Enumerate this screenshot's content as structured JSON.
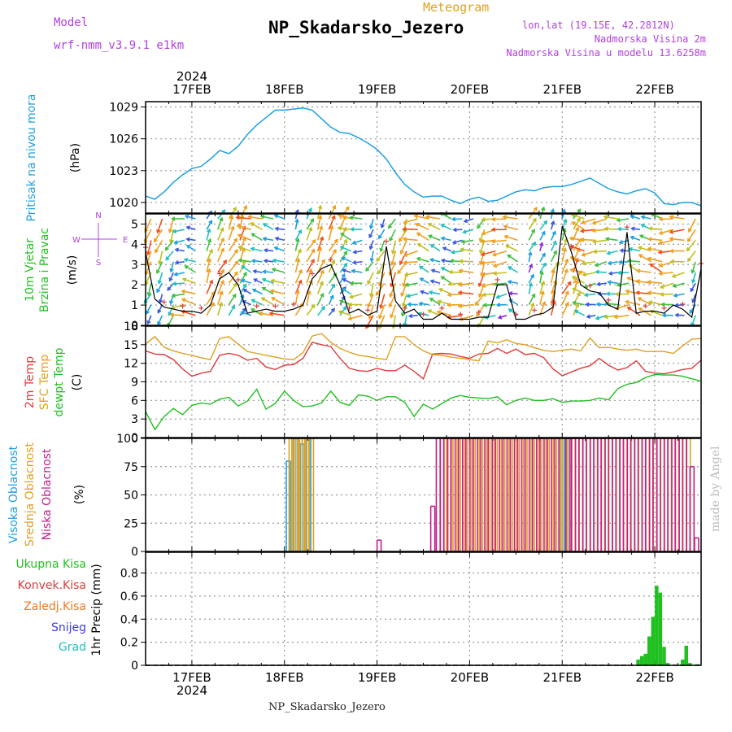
{
  "header": {
    "model_label": "Model",
    "model_name": "wrf-nmm_v3.9.1  e1km",
    "product": "Meteogram",
    "station": "NP_Skadarsko_Jezero",
    "lonlat": "lon,lat (19.15E, 42.2812N)",
    "altitude": "Nadmorska Visina 2m",
    "model_altitude": "Nadmorska Visina u modelu 13.6258m"
  },
  "footer": {
    "station": "NP_Skadarsko_Jezero",
    "credit": "made by Angel"
  },
  "colors": {
    "pressure": "#1ea0e0",
    "wind_speed": "#000000",
    "temp2m": "#e03a3a",
    "sfc_temp": "#e0a020",
    "dewpoint": "#20c020",
    "cloud_high": "#1ea0e0",
    "cloud_mid": "#e0a020",
    "cloud_low": "#c0208a",
    "precip_total": "#20c020",
    "label_green": "#20c020",
    "label_red": "#e03a3a",
    "label_orange": "#f07820",
    "label_snow": "#3a3ae0",
    "label_hail": "#20c0c0",
    "header_purple": "#b040e0"
  },
  "chart_data": [
    {
      "type": "line",
      "panel": "pressure",
      "title": "Pritisak na nivou mora",
      "ylabel": "(hPa)",
      "x_ticks": [
        "17FEB",
        "18FEB",
        "19FEB",
        "20FEB",
        "21FEB",
        "22FEB"
      ],
      "x_top_year": "2024",
      "xlim_days": [
        16.5,
        22.5
      ],
      "ylim": [
        1019.0,
        1029.5
      ],
      "y_ticks": [
        1020,
        1023,
        1026,
        1029
      ],
      "series": [
        {
          "x": [
            16.5,
            16.6,
            16.7,
            16.8,
            16.9,
            17.0,
            17.1,
            17.2,
            17.3,
            17.4,
            17.5,
            17.6,
            17.7,
            17.8,
            17.9,
            18.0,
            18.1,
            18.2,
            18.3,
            18.4,
            18.5,
            18.6,
            18.7,
            18.8,
            18.9,
            19.0,
            19.1,
            19.2,
            19.3,
            19.4,
            19.5,
            19.6,
            19.7,
            19.8,
            19.9,
            20.0,
            20.1,
            20.2,
            20.3,
            20.4,
            20.5,
            20.6,
            20.7,
            20.8,
            20.9,
            21.0,
            21.1,
            21.2,
            21.3,
            21.4,
            21.5,
            21.6,
            21.7,
            21.8,
            21.9,
            22.0,
            22.1,
            22.2,
            22.3,
            22.4,
            22.5
          ],
          "values": [
            1020.6,
            1020.3,
            1021.0,
            1021.9,
            1022.6,
            1023.2,
            1023.4,
            1024.1,
            1024.9,
            1024.6,
            1025.3,
            1026.4,
            1027.3,
            1028.0,
            1028.7,
            1028.7,
            1028.8,
            1028.9,
            1028.7,
            1027.9,
            1027.1,
            1026.6,
            1026.5,
            1026.1,
            1025.6,
            1025.0,
            1024.1,
            1022.8,
            1021.7,
            1021.0,
            1020.5,
            1020.6,
            1020.6,
            1020.2,
            1019.9,
            1020.3,
            1020.5,
            1020.1,
            1020.2,
            1020.6,
            1021.0,
            1021.2,
            1021.1,
            1021.4,
            1021.5,
            1021.5,
            1021.7,
            1022.0,
            1022.3,
            1021.8,
            1021.3,
            1021.0,
            1020.8,
            1021.1,
            1021.3,
            1020.9,
            1019.9,
            1019.8,
            1020.0,
            1020.0,
            1019.7
          ]
        }
      ]
    },
    {
      "type": "line",
      "panel": "wind",
      "title": "10m Vjetar Brzina i Pravac",
      "ylabel": "(m/s)",
      "compass": {
        "n": "N",
        "s": "S",
        "e": "E",
        "w": "W"
      },
      "ylim": [
        0,
        5.5
      ],
      "y_ticks": [
        0,
        1,
        2,
        3,
        4,
        5
      ],
      "series": [
        {
          "name": "speed",
          "x": [
            16.5,
            16.6,
            16.7,
            16.8,
            16.9,
            17.0,
            17.1,
            17.2,
            17.3,
            17.4,
            17.5,
            17.6,
            17.7,
            17.8,
            17.9,
            18.0,
            18.1,
            18.2,
            18.3,
            18.4,
            18.5,
            18.6,
            18.7,
            18.8,
            18.9,
            19.0,
            19.1,
            19.2,
            19.3,
            19.4,
            19.5,
            19.6,
            19.7,
            19.8,
            19.9,
            20.0,
            20.1,
            20.2,
            20.3,
            20.4,
            20.5,
            20.6,
            20.7,
            20.8,
            20.9,
            21.0,
            21.1,
            21.2,
            21.3,
            21.4,
            21.5,
            21.6,
            21.7,
            21.8,
            21.9,
            22.0,
            22.1,
            22.2,
            22.3,
            22.4,
            22.5
          ],
          "values": [
            3.6,
            1.3,
            0.9,
            0.8,
            0.7,
            0.7,
            0.6,
            1.0,
            2.3,
            2.6,
            2.0,
            0.6,
            0.7,
            0.8,
            0.7,
            0.7,
            0.8,
            1.0,
            2.3,
            2.8,
            3.0,
            2.0,
            0.6,
            0.8,
            0.5,
            0.7,
            3.9,
            1.2,
            0.6,
            0.8,
            0.3,
            0.3,
            0.6,
            0.3,
            0.3,
            0.3,
            0.4,
            0.4,
            2.0,
            2.0,
            0.3,
            0.3,
            0.5,
            0.6,
            0.9,
            4.9,
            3.6,
            2.0,
            1.7,
            1.6,
            1.0,
            0.8,
            4.6,
            0.6,
            0.7,
            0.7,
            0.6,
            1.0,
            0.8,
            0.4,
            2.8
          ]
        }
      ]
    },
    {
      "type": "line",
      "panel": "temperature",
      "series_labels": [
        "2m Temp",
        "SFC Temp",
        "dewpt Temp"
      ],
      "ylabel": "(C)",
      "ylim": [
        0,
        18
      ],
      "y_ticks": [
        0,
        3,
        6,
        9,
        12,
        15,
        18
      ],
      "series": [
        {
          "name": "2m Temp",
          "x": [
            16.5,
            16.6,
            16.7,
            16.8,
            16.9,
            17.0,
            17.1,
            17.2,
            17.3,
            17.4,
            17.5,
            17.6,
            17.7,
            17.8,
            17.9,
            18.0,
            18.1,
            18.2,
            18.3,
            18.4,
            18.5,
            18.6,
            18.7,
            18.8,
            18.9,
            19.0,
            19.1,
            19.2,
            19.3,
            19.4,
            19.5,
            19.6,
            19.7,
            19.8,
            19.9,
            20.0,
            20.1,
            20.2,
            20.3,
            20.4,
            20.5,
            20.6,
            20.7,
            20.8,
            20.9,
            21.0,
            21.1,
            21.2,
            21.3,
            21.4,
            21.5,
            21.6,
            21.7,
            21.8,
            21.9,
            22.0,
            22.1,
            22.2,
            22.3,
            22.4,
            22.5
          ],
          "values": [
            14.0,
            13.5,
            13.4,
            12.6,
            11.1,
            9.9,
            10.4,
            10.7,
            13.3,
            13.6,
            13.3,
            12.5,
            12.8,
            11.4,
            11.0,
            11.7,
            11.8,
            12.8,
            15.4,
            15.0,
            14.7,
            12.8,
            11.2,
            10.8,
            10.7,
            11.2,
            10.8,
            10.8,
            11.7,
            10.7,
            9.5,
            13.5,
            13.6,
            13.5,
            13.1,
            12.8,
            13.5,
            13.6,
            14.4,
            13.6,
            14.3,
            13.4,
            13.6,
            12.9,
            11.1,
            10.0,
            10.6,
            11.2,
            11.6,
            12.8,
            11.7,
            10.9,
            11.3,
            12.4,
            10.7,
            10.4,
            10.3,
            10.6,
            11.0,
            11.2,
            12.5
          ]
        },
        {
          "name": "SFC Temp",
          "x": [
            16.5,
            16.6,
            16.7,
            16.8,
            16.9,
            17.0,
            17.1,
            17.2,
            17.3,
            17.4,
            17.5,
            17.6,
            17.7,
            17.8,
            17.9,
            18.0,
            18.1,
            18.2,
            18.3,
            18.4,
            18.5,
            18.6,
            18.7,
            18.8,
            18.9,
            19.0,
            19.1,
            19.2,
            19.3,
            19.4,
            19.5,
            19.6,
            19.7,
            19.8,
            19.9,
            20.0,
            20.1,
            20.2,
            20.3,
            20.4,
            20.5,
            20.6,
            20.7,
            20.8,
            20.9,
            21.0,
            21.1,
            21.2,
            21.3,
            21.4,
            21.5,
            21.6,
            21.7,
            21.8,
            21.9,
            22.0,
            22.1,
            22.2,
            22.3,
            22.4,
            22.5
          ],
          "values": [
            15.1,
            16.3,
            14.6,
            14.0,
            13.6,
            13.3,
            12.9,
            12.6,
            16.0,
            16.3,
            15.1,
            13.9,
            13.6,
            13.3,
            13.0,
            12.7,
            12.6,
            13.7,
            16.4,
            16.8,
            15.4,
            14.4,
            13.8,
            13.3,
            13.1,
            12.8,
            12.6,
            16.3,
            16.3,
            15.0,
            14.0,
            13.4,
            13.3,
            13.0,
            12.8,
            12.6,
            12.4,
            15.6,
            15.3,
            15.8,
            15.2,
            15.0,
            14.5,
            14.1,
            13.9,
            14.1,
            14.3,
            14.0,
            16.1,
            14.5,
            14.6,
            14.3,
            14.1,
            14.3,
            13.9,
            13.9,
            13.9,
            13.6,
            14.8,
            15.9,
            16.0
          ]
        },
        {
          "name": "dewpt Temp",
          "x": [
            16.5,
            16.6,
            16.7,
            16.8,
            16.9,
            17.0,
            17.1,
            17.2,
            17.3,
            17.4,
            17.5,
            17.6,
            17.7,
            17.8,
            17.9,
            18.0,
            18.1,
            18.2,
            18.3,
            18.4,
            18.5,
            18.6,
            18.7,
            18.8,
            18.9,
            19.0,
            19.1,
            19.2,
            19.3,
            19.4,
            19.5,
            19.6,
            19.7,
            19.8,
            19.9,
            20.0,
            20.1,
            20.2,
            20.3,
            20.4,
            20.5,
            20.6,
            20.7,
            20.8,
            20.9,
            21.0,
            21.1,
            21.2,
            21.3,
            21.4,
            21.5,
            21.6,
            21.7,
            21.8,
            21.9,
            22.0,
            22.1,
            22.2,
            22.3,
            22.4,
            22.5
          ],
          "values": [
            4.2,
            1.3,
            3.4,
            4.7,
            3.7,
            5.2,
            5.6,
            5.4,
            6.2,
            6.5,
            5.1,
            5.9,
            7.8,
            4.6,
            5.5,
            7.5,
            6.0,
            5.0,
            5.1,
            5.6,
            7.5,
            5.7,
            5.2,
            6.9,
            6.7,
            6.0,
            6.6,
            6.6,
            5.7,
            3.4,
            5.4,
            4.6,
            5.5,
            6.4,
            6.8,
            6.5,
            6.4,
            6.3,
            6.6,
            5.3,
            6.0,
            6.4,
            6.0,
            6.0,
            6.3,
            5.7,
            5.9,
            5.9,
            6.0,
            6.4,
            6.1,
            7.9,
            8.6,
            8.9,
            9.7,
            10.2,
            10.1,
            10.1,
            9.9,
            9.5,
            9.1
          ]
        }
      ]
    },
    {
      "type": "bar",
      "panel": "cloudiness",
      "series_labels": [
        "Visoka Oblacnost",
        "Srednja Oblacnost",
        "Niska Oblacnost"
      ],
      "ylabel": "(%)",
      "ylim": [
        0,
        100
      ],
      "y_ticks": [
        0,
        25,
        50,
        75,
        100
      ],
      "series": [
        {
          "name": "Visoka Oblacnost",
          "x": [
            18.02,
            18.1,
            18.17,
            18.24,
            20.98,
            21.02
          ],
          "values": [
            80,
            100,
            95,
            100,
            100,
            100
          ]
        },
        {
          "name": "Srednja Oblacnost",
          "x": [
            18.05,
            18.08,
            18.12,
            18.15,
            18.19,
            18.22,
            18.27,
            19.68,
            19.75,
            19.82,
            19.9,
            19.98,
            20.06,
            20.14,
            20.22,
            20.3,
            20.38,
            20.46,
            20.54,
            20.62,
            20.7,
            20.78,
            20.86,
            20.94,
            21.0,
            21.06,
            21.14,
            21.22,
            21.3,
            21.38,
            21.46,
            21.54,
            21.62,
            21.7,
            21.78,
            21.86,
            21.94,
            22.02,
            22.1,
            22.18,
            22.26,
            22.34
          ],
          "values": [
            100,
            100,
            100,
            100,
            100,
            100,
            100,
            100,
            100,
            100,
            100,
            100,
            100,
            100,
            100,
            100,
            100,
            100,
            100,
            100,
            100,
            100,
            100,
            100,
            100,
            100,
            100,
            100,
            100,
            100,
            100,
            100,
            100,
            100,
            100,
            100,
            100,
            100,
            100,
            100,
            100,
            100
          ]
        },
        {
          "name": "Niska Oblacnost",
          "x": [
            19.0,
            19.58,
            19.64,
            19.72,
            19.8,
            19.88,
            19.96,
            20.04,
            20.12,
            20.2,
            20.28,
            20.36,
            20.44,
            20.52,
            20.6,
            20.68,
            20.76,
            20.84,
            20.92,
            21.04,
            21.1,
            21.18,
            21.26,
            21.34,
            21.42,
            21.5,
            21.58,
            21.66,
            21.74,
            21.82,
            21.9,
            21.98,
            22.06,
            22.14,
            22.22,
            22.3,
            22.38,
            22.43
          ],
          "values": [
            10,
            40,
            100,
            100,
            100,
            100,
            100,
            100,
            100,
            100,
            100,
            100,
            100,
            100,
            100,
            100,
            100,
            100,
            100,
            100,
            100,
            100,
            100,
            100,
            100,
            100,
            100,
            100,
            100,
            100,
            100,
            100,
            100,
            100,
            100,
            100,
            75,
            12
          ]
        }
      ]
    },
    {
      "type": "bar",
      "panel": "precipitation",
      "series_labels": [
        "Ukupna  Kisa",
        "Konvek.Kisa",
        "Zaledj.Kisa",
        "Snijeg",
        "Grad"
      ],
      "ylabel": "1hr Precip (mm)",
      "ylim": [
        0,
        0.98
      ],
      "y_ticks": [
        0,
        0.2,
        0.4,
        0.6,
        0.8
      ],
      "x_ticks": [
        "17FEB",
        "18FEB",
        "19FEB",
        "20FEB",
        "21FEB",
        "22FEB"
      ],
      "x_bottom_year": "2024",
      "series": [
        {
          "name": "Ukupna  Kisa",
          "x": [
            21.82,
            21.86,
            21.9,
            21.94,
            21.98,
            22.02,
            22.06,
            22.1,
            22.14,
            22.3,
            22.34,
            22.38,
            22.42,
            22.46
          ],
          "values": [
            0.05,
            0.08,
            0.1,
            0.25,
            0.42,
            0.69,
            0.63,
            0.16,
            0.02,
            0.05,
            0.17,
            0.02,
            0.0,
            0.01
          ]
        }
      ]
    }
  ]
}
